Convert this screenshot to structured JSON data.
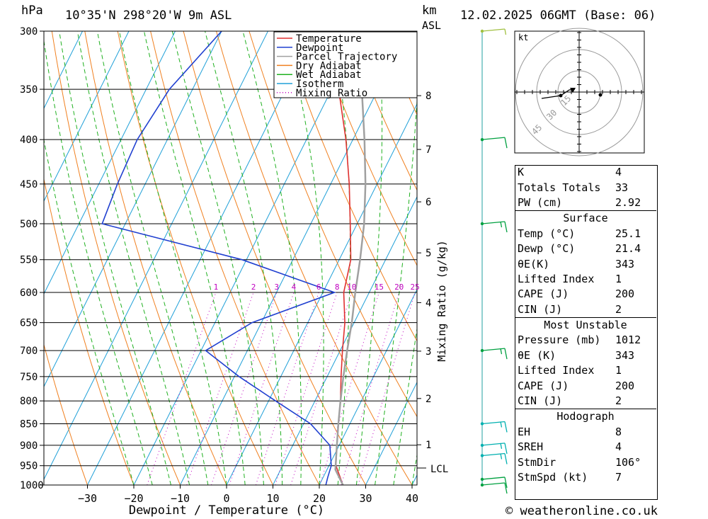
{
  "header": {
    "location": "10°35'N 298°20'W 9m ASL",
    "datetime": "12.02.2025 06GMT (Base: 06)",
    "hpa_label": "hPa",
    "km_label": "km",
    "asl_label": "ASL"
  },
  "chart_data": {
    "type": "line",
    "title": "10°35'N 298°20'W 9m ASL",
    "xlabel": "Dewpoint / Temperature (°C)",
    "ylabel": "hPa",
    "right_ylabel": "Mixing Ratio (g/kg)",
    "x_ticks": [
      -30,
      -20,
      -10,
      0,
      10,
      20,
      30,
      40
    ],
    "pressure_ticks": [
      300,
      350,
      400,
      450,
      500,
      550,
      600,
      650,
      700,
      750,
      800,
      850,
      900,
      950,
      1000
    ],
    "km_ticks": [
      1,
      2,
      3,
      4,
      5,
      6,
      7,
      8
    ],
    "lcl_label": "LCL",
    "mixing_ratio_labels": [
      "1",
      "2",
      "3",
      "4",
      "6",
      "8",
      "10",
      "15",
      "20",
      "25"
    ],
    "legend": [
      "Temperature",
      "Dewpoint",
      "Parcel Trajectory",
      "Dry Adiabat",
      "Wet Adiabat",
      "Isotherm",
      "Mixing Ratio"
    ],
    "series": [
      {
        "name": "Temperature",
        "color": "#e03030",
        "points": [
          [
            1000,
            25.1
          ],
          [
            950,
            21.5
          ],
          [
            900,
            19.5
          ],
          [
            850,
            17.5
          ],
          [
            800,
            15.5
          ],
          [
            750,
            13.0
          ],
          [
            700,
            10.5
          ],
          [
            650,
            8.0
          ],
          [
            600,
            4.5
          ],
          [
            550,
            2.5
          ],
          [
            500,
            -1.5
          ],
          [
            450,
            -6.0
          ],
          [
            400,
            -11.5
          ],
          [
            350,
            -18.5
          ],
          [
            300,
            -27.0
          ]
        ]
      },
      {
        "name": "Dewpoint",
        "color": "#2040d0",
        "points": [
          [
            1000,
            21.4
          ],
          [
            980,
            21.0
          ],
          [
            950,
            20.5
          ],
          [
            900,
            18.0
          ],
          [
            850,
            11.5
          ],
          [
            800,
            1.5
          ],
          [
            750,
            -9.0
          ],
          [
            700,
            -19.0
          ],
          [
            650,
            -12.0
          ],
          [
            600,
            2.5
          ],
          [
            550,
            -21.0
          ],
          [
            500,
            -55.0
          ],
          [
            450,
            -56.0
          ],
          [
            400,
            -56.5
          ],
          [
            350,
            -55.0
          ],
          [
            300,
            -50.0
          ]
        ]
      },
      {
        "name": "Parcel Trajectory",
        "color": "#a0a0a0",
        "points": [
          [
            1000,
            25.1
          ],
          [
            960,
            21.8
          ],
          [
            900,
            19.5
          ],
          [
            850,
            17.5
          ],
          [
            800,
            15.5
          ],
          [
            750,
            13.5
          ],
          [
            700,
            11.5
          ],
          [
            650,
            9.5
          ],
          [
            600,
            7.0
          ],
          [
            550,
            4.5
          ],
          [
            500,
            1.5
          ],
          [
            450,
            -2.5
          ],
          [
            400,
            -7.5
          ],
          [
            350,
            -13.5
          ],
          [
            300,
            -20.0
          ]
        ]
      }
    ],
    "winds": [
      {
        "p": 1000,
        "speed": 10,
        "color": "#00a040"
      },
      {
        "p": 985,
        "speed": 10,
        "color": "#00a040"
      },
      {
        "p": 925,
        "speed": 15,
        "color": "#00b0b0"
      },
      {
        "p": 900,
        "speed": 15,
        "color": "#00b0b0"
      },
      {
        "p": 850,
        "speed": 15,
        "color": "#00b0b0"
      },
      {
        "p": 700,
        "speed": 15,
        "color": "#00a040"
      },
      {
        "p": 500,
        "speed": 15,
        "color": "#00a040"
      },
      {
        "p": 400,
        "speed": 10,
        "color": "#00a040"
      },
      {
        "p": 300,
        "speed": 5,
        "color": "#a0c040"
      }
    ]
  },
  "hodograph": {
    "unit_label": "kt",
    "ring_labels": [
      "15",
      "30",
      "45"
    ]
  },
  "indices": {
    "k_label": "K",
    "k_value": "4",
    "tt_label": "Totals Totals",
    "tt_value": "33",
    "pw_label": "PW (cm)",
    "pw_value": "2.92",
    "surface_title": "Surface",
    "s_temp_label": "Temp (°C)",
    "s_temp_value": "25.1",
    "s_dewp_label": "Dewp (°C)",
    "s_dewp_value": "21.4",
    "s_theta_label": "θE(K)",
    "s_theta_value": "343",
    "s_li_label": "Lifted Index",
    "s_li_value": "1",
    "s_cape_label": "CAPE (J)",
    "s_cape_value": "200",
    "s_cin_label": "CIN (J)",
    "s_cin_value": "2",
    "mu_title": "Most Unstable",
    "mu_pres_label": "Pressure (mb)",
    "mu_pres_value": "1012",
    "mu_theta_label": "θE (K)",
    "mu_theta_value": "343",
    "mu_li_label": "Lifted Index",
    "mu_li_value": "1",
    "mu_cape_label": "CAPE (J)",
    "mu_cape_value": "200",
    "mu_cin_label": "CIN (J)",
    "mu_cin_value": "2",
    "hodo_title": "Hodograph",
    "eh_label": "EH",
    "eh_value": "8",
    "sreh_label": "SREH",
    "sreh_value": "4",
    "stmdir_label": "StmDir",
    "stmdir_value": "106°",
    "stmspd_label": "StmSpd (kt)",
    "stmspd_value": "7"
  },
  "footer": {
    "copyright": "© weatheronline.co.uk"
  }
}
